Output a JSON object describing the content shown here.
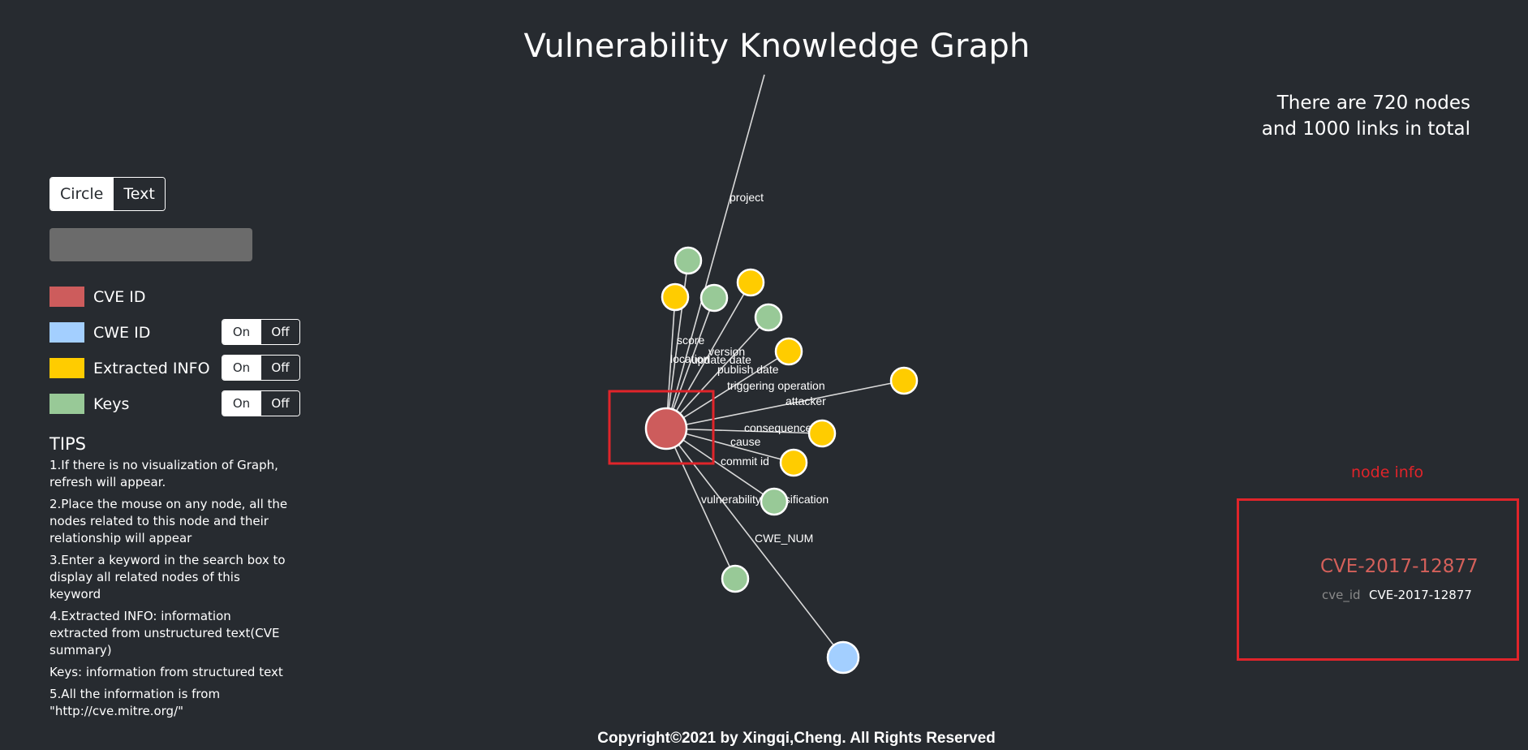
{
  "page": {
    "title": "Vulnerability Knowledge Graph",
    "stats_line1": "There are 720 nodes",
    "stats_line2": "and 1000 links in total",
    "footer": "Copyright©2021 by Xingqi,Cheng. All Rights Reserved"
  },
  "controls": {
    "mode_circle": "Circle",
    "mode_text": "Text",
    "mode_selected": "Circle",
    "search_value": ""
  },
  "legend": {
    "items": [
      {
        "label": "CVE ID",
        "color": "#cd5c5c"
      },
      {
        "label": "CWE ID",
        "color": "#a3cfff",
        "on": "On",
        "off": "Off"
      },
      {
        "label": "Extracted INFO",
        "color": "#ffcc00",
        "on": "On",
        "off": "Off"
      },
      {
        "label": "Keys",
        "color": "#98c997",
        "on": "On",
        "off": "Off"
      }
    ]
  },
  "tips": {
    "title": "TIPS",
    "items": [
      "1.If there is no visualization of Graph, refresh will appear.",
      "2.Place the mouse on any node, all the nodes related to this node and their relationship will appear",
      "3.Enter a keyword in the search box to display all related nodes of this keyword",
      "4.Extracted INFO: information extracted from unstructured text(CVE summary)",
      "Keys: information from structured text",
      "5.All the information is from \"http://cve.mitre.org/\""
    ]
  },
  "graph": {
    "colors": {
      "cve": "#cd5c5c",
      "cwe": "#a3cfff",
      "extracted": "#ffcc00",
      "keys": "#98c997",
      "highlight": "#e0242a"
    },
    "edge_labels": {
      "project": "project",
      "score": "score",
      "version": "version",
      "location": "location",
      "update_date": "update date",
      "publish_date": "publish date",
      "triggering_operation": "triggering operation",
      "attacker": "attacker",
      "consequence": "consequence",
      "cause": "cause",
      "commit_id": "commit id",
      "vulnerability_classification": "vulnerability classification",
      "cwe_num": "CWE_NUM"
    }
  },
  "node_info": {
    "title": "node info",
    "name": "CVE-2017-12877",
    "key": "cve_id",
    "value": "CVE-2017-12877"
  }
}
